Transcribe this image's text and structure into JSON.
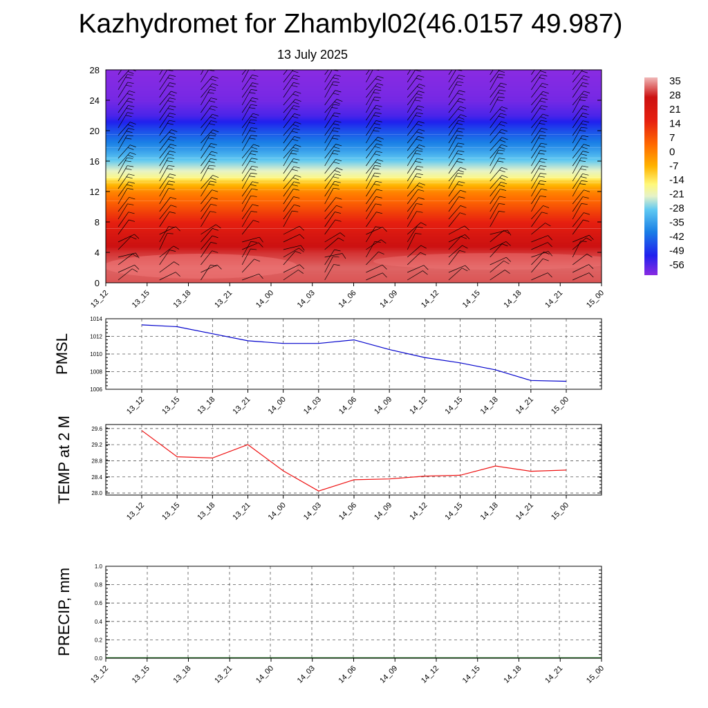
{
  "title": "Kazhydromet for Zhambyl02(46.0157 49.987)",
  "subtitle": "13 July 2025",
  "colors": {
    "pmsl_line": "#0000cc",
    "temp_line": "#ee1111",
    "precip_line": "#006600",
    "barb": "#000000"
  },
  "x_ticks_top": [
    "13_12",
    "13_15",
    "13_18",
    "13_21",
    "14_00",
    "14_03",
    "14_06",
    "14_09",
    "14_12",
    "14_15",
    "14_18",
    "14_21",
    "15_00"
  ],
  "x_ticks_bottom": [
    "13_12",
    "13_15",
    "13_18",
    "13_21",
    "14_00",
    "14_03",
    "14_06",
    "14_09",
    "14_12",
    "14_15",
    "14_18",
    "14_21",
    "15_00"
  ],
  "x_ticks_precip": [
    "13_12",
    "13_15",
    "13_18",
    "13_21",
    "14_00",
    "14_03",
    "14_06",
    "14_09",
    "14_12",
    "14_15",
    "14_18",
    "14_21",
    "15_00"
  ],
  "chart_data": [
    {
      "type": "heatmap",
      "title": "",
      "xlabel": "",
      "ylabel": "",
      "yticks": [
        0,
        4,
        8,
        12,
        16,
        20,
        24,
        28
      ],
      "ylim": [
        0,
        28
      ],
      "colorbar": {
        "labels": [
          "35",
          "28",
          "21",
          "14",
          "7",
          "0",
          "-7",
          "-14",
          "-21",
          "-28",
          "-35",
          "-42",
          "-49",
          "-56"
        ],
        "range": [
          -60,
          38
        ]
      },
      "temperature_profile": [
        [
          0,
          32
        ],
        [
          2,
          33
        ],
        [
          4,
          30
        ],
        [
          6,
          25
        ],
        [
          8,
          18
        ],
        [
          10,
          10
        ],
        [
          12,
          2
        ],
        [
          13.5,
          -10
        ],
        [
          14,
          -16
        ],
        [
          16,
          -26
        ],
        [
          18,
          -36
        ],
        [
          20,
          -44
        ],
        [
          22,
          -54
        ],
        [
          24,
          -58
        ],
        [
          28,
          -60
        ]
      ],
      "wind_barbs": true
    },
    {
      "type": "line",
      "title": "",
      "xlabel": "",
      "ylabel": "PMSL",
      "ylim": [
        1006,
        1014
      ],
      "yticks": [
        "1006",
        "1008",
        "1010",
        "1012",
        "1014"
      ],
      "series": [
        {
          "values": [
            1013.3,
            1013.1,
            1012.3,
            1011.5,
            1011.2,
            1011.2,
            1011.6,
            1010.5,
            1009.6,
            1009.0,
            1008.2,
            1007.0,
            1006.9
          ]
        }
      ]
    },
    {
      "type": "line",
      "title": "",
      "xlabel": "",
      "ylabel": "TEMP at 2 M",
      "ylim": [
        27.95,
        29.7
      ],
      "yticks": [
        "28.0",
        "28.4",
        "28.8",
        "29.2",
        "29.6"
      ],
      "series": [
        {
          "values": [
            29.55,
            28.9,
            28.87,
            29.2,
            28.55,
            28.05,
            28.33,
            28.35,
            28.42,
            28.44,
            28.67,
            28.54,
            28.57
          ]
        }
      ]
    },
    {
      "type": "line",
      "title": "",
      "xlabel": "",
      "ylabel": "PRECIP, mm",
      "ylim": [
        0,
        1.0
      ],
      "yticks": [
        "0.0",
        "0.2",
        "0.4",
        "0.6",
        "0.8",
        "1.0"
      ],
      "series": [
        {
          "values": [
            0,
            0,
            0,
            0,
            0,
            0,
            0,
            0,
            0,
            0,
            0,
            0,
            0
          ]
        }
      ]
    }
  ]
}
